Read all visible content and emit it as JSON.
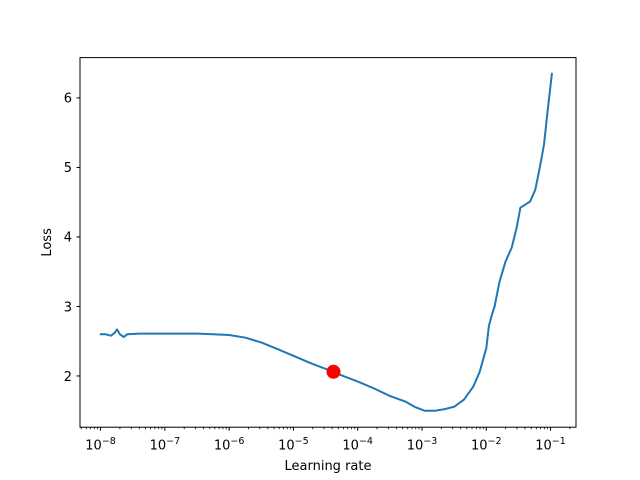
{
  "figure": {
    "background": "#ffffff"
  },
  "chart_data": {
    "type": "line",
    "title": "",
    "xlabel": "Learning rate",
    "ylabel": "Loss",
    "x_scale": "log",
    "y_scale": "linear",
    "grid": false,
    "legend": null,
    "xlim_log10": [
      -8.32,
      -0.604
    ],
    "ylim": [
      1.263,
      6.58
    ],
    "x_major_tick_exponents": [
      -8,
      -7,
      -6,
      -5,
      -4,
      -3,
      -2,
      -1
    ],
    "y_ticks": [
      2,
      3,
      4,
      5,
      6
    ],
    "line_color": "#1f77b4",
    "line_width": 2,
    "axis_color": "#000000",
    "marker": {
      "name": "highlighted-lr-point",
      "lr": 4.2e-05,
      "loss": 2.06,
      "color": "#ff0000",
      "radius_px": 7
    },
    "series": [
      {
        "name": "loss-vs-learning-rate",
        "points": [
          [
            1e-08,
            2.6
          ],
          [
            1.2e-08,
            2.6
          ],
          [
            1.45e-08,
            2.58
          ],
          [
            1.65e-08,
            2.62
          ],
          [
            1.8e-08,
            2.67
          ],
          [
            2e-08,
            2.6
          ],
          [
            2.3e-08,
            2.56
          ],
          [
            2.6e-08,
            2.6
          ],
          [
            4e-08,
            2.61
          ],
          [
            7e-08,
            2.61
          ],
          [
            1e-07,
            2.61
          ],
          [
            2e-07,
            2.61
          ],
          [
            3.2e-07,
            2.61
          ],
          [
            5.6e-07,
            2.6
          ],
          [
            1e-06,
            2.59
          ],
          [
            1.8e-06,
            2.55
          ],
          [
            3.2e-06,
            2.48
          ],
          [
            5.6e-06,
            2.39
          ],
          [
            1e-05,
            2.29
          ],
          [
            1.8e-05,
            2.19
          ],
          [
            3.2e-05,
            2.1
          ],
          [
            4.2e-05,
            2.06
          ],
          [
            5.6e-05,
            2.01
          ],
          [
            0.0001,
            1.92
          ],
          [
            0.00018,
            1.82
          ],
          [
            0.00032,
            1.71
          ],
          [
            0.00045,
            1.66
          ],
          [
            0.00056,
            1.63
          ],
          [
            0.00079,
            1.55
          ],
          [
            0.0011,
            1.5
          ],
          [
            0.0016,
            1.5
          ],
          [
            0.0022,
            1.52
          ],
          [
            0.0032,
            1.56
          ],
          [
            0.0045,
            1.66
          ],
          [
            0.0063,
            1.85
          ],
          [
            0.0079,
            2.06
          ],
          [
            0.01,
            2.4
          ],
          [
            0.011,
            2.72
          ],
          [
            0.0126,
            2.92
          ],
          [
            0.0135,
            3.0
          ],
          [
            0.016,
            3.35
          ],
          [
            0.02,
            3.65
          ],
          [
            0.025,
            3.85
          ],
          [
            0.03,
            4.15
          ],
          [
            0.034,
            4.42
          ],
          [
            0.041,
            4.47
          ],
          [
            0.048,
            4.51
          ],
          [
            0.058,
            4.68
          ],
          [
            0.069,
            5.03
          ],
          [
            0.079,
            5.33
          ],
          [
            0.091,
            5.85
          ],
          [
            0.105,
            6.35
          ]
        ]
      }
    ]
  }
}
